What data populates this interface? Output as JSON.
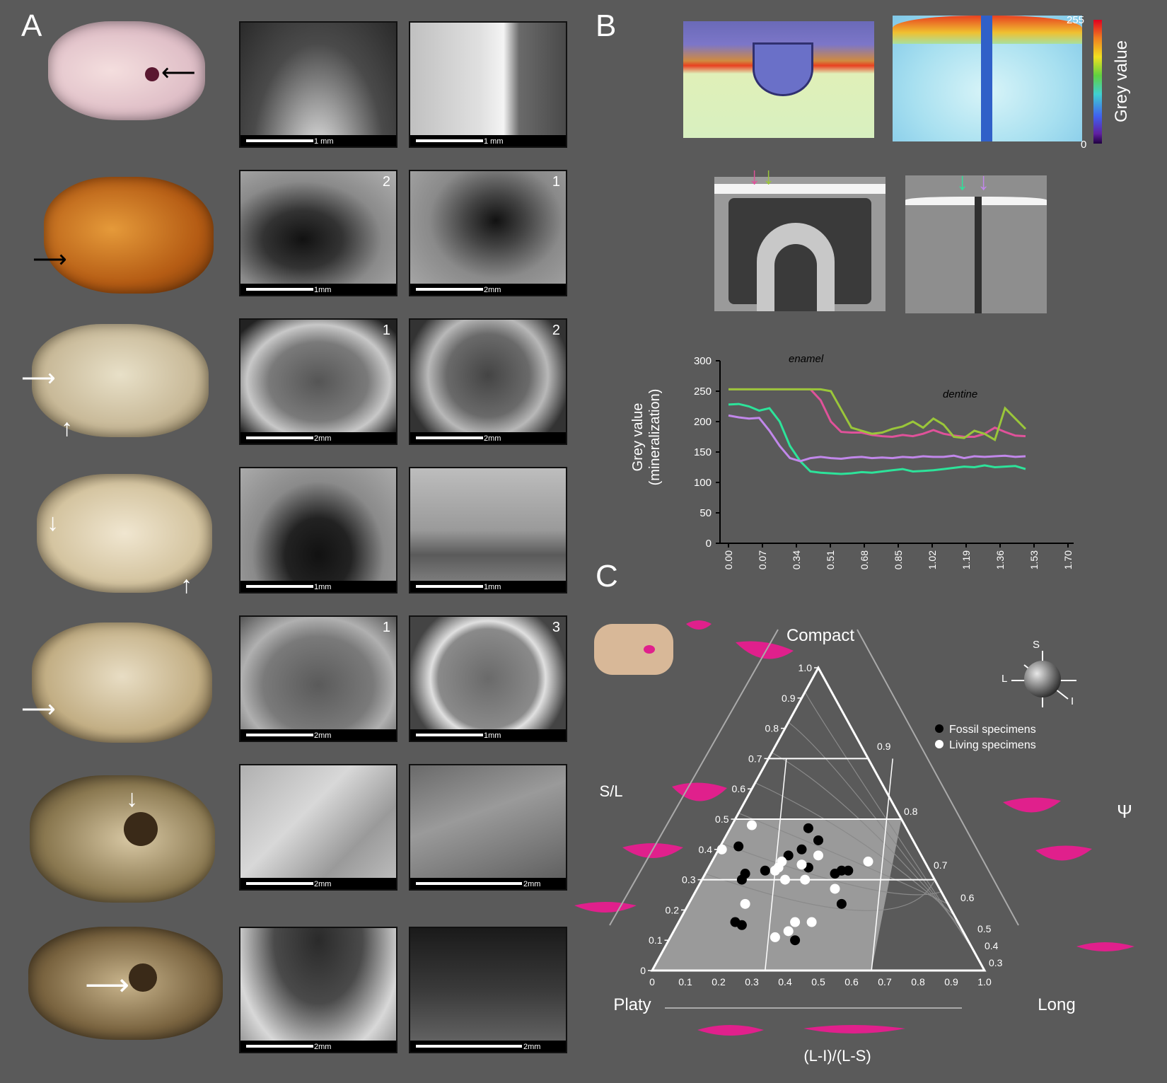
{
  "panels": {
    "a": "A",
    "b": "B",
    "c": "C"
  },
  "sem_rows": [
    {
      "left": {
        "scale": "1 mm",
        "num": ""
      },
      "right": {
        "scale": "1 mm",
        "num": ""
      }
    },
    {
      "left": {
        "scale": "1mm",
        "num": "2"
      },
      "right": {
        "scale": "2mm",
        "num": "1"
      }
    },
    {
      "left": {
        "scale": "2mm",
        "num": "1"
      },
      "right": {
        "scale": "2mm",
        "num": "2"
      }
    },
    {
      "left": {
        "scale": "1mm",
        "num": ""
      },
      "right": {
        "scale": "1mm",
        "num": ""
      }
    },
    {
      "left": {
        "scale": "2mm",
        "num": "1"
      },
      "right": {
        "scale": "1mm",
        "num": "3"
      }
    },
    {
      "left": {
        "scale": "2mm",
        "num": ""
      },
      "right": {
        "scale": "2mm",
        "num": ""
      }
    },
    {
      "left": {
        "scale": "2mm",
        "num": ""
      },
      "right": {
        "scale": "2mm",
        "num": ""
      }
    }
  ],
  "colorbar": {
    "max": "255",
    "min": "0",
    "label": "Grey value"
  },
  "chart_data": {
    "type": "line",
    "ylabel_line1": "Grey value",
    "ylabel_line2": "(mineralization)",
    "ylim": [
      0,
      300
    ],
    "yticks": [
      "0",
      "50",
      "100",
      "150",
      "200",
      "250",
      "300"
    ],
    "xticks": [
      "0.00",
      "0.07",
      "0.34",
      "0.51",
      "0.68",
      "0.85",
      "1.02",
      "1.19",
      "1.36",
      "1.53",
      "1.70"
    ],
    "annotations": {
      "enamel": "enamel",
      "dentine": "dentine"
    },
    "series": [
      {
        "color": "#e0529a",
        "values": [
          253,
          253,
          253,
          253,
          253,
          253,
          253,
          253,
          253,
          235,
          200,
          183,
          182,
          182,
          178,
          176,
          175,
          178,
          176,
          180,
          186,
          180,
          177,
          175,
          175,
          180,
          190,
          183,
          177,
          176
        ]
      },
      {
        "color": "#9ac63a",
        "values": [
          253,
          253,
          253,
          253,
          253,
          253,
          253,
          253,
          253,
          253,
          250,
          220,
          190,
          185,
          180,
          182,
          188,
          192,
          200,
          190,
          205,
          195,
          175,
          173,
          185,
          180,
          170,
          222,
          205,
          188
        ]
      },
      {
        "color": "#2de39a",
        "values": [
          228,
          229,
          225,
          218,
          222,
          200,
          160,
          135,
          118,
          116,
          115,
          114,
          115,
          117,
          116,
          118,
          120,
          122,
          118,
          119,
          120,
          122,
          124,
          126,
          125,
          128,
          125,
          126,
          127,
          122
        ]
      },
      {
        "color": "#c187ea",
        "values": [
          210,
          207,
          205,
          206,
          185,
          160,
          140,
          135,
          140,
          142,
          140,
          139,
          141,
          142,
          140,
          141,
          140,
          142,
          141,
          143,
          142,
          142,
          144,
          140,
          143,
          142,
          143,
          144,
          142,
          143
        ]
      }
    ]
  },
  "ternary": {
    "top_label": "Compact",
    "left_label": "Platy",
    "right_label": "Long",
    "side_label": "S/L",
    "psi_label": "Ψ",
    "bottom_axis_label": "(L-I)/(L-S)",
    "axis_s": "S",
    "axis_l": "L",
    "axis_i": "I",
    "legend_fossil": "Fossil specimens",
    "legend_living": "Living specimens",
    "left_ticks": [
      "0",
      "0.1",
      "0.2",
      "0.3",
      "0.4",
      "0.5",
      "0.6",
      "0.7",
      "0.8",
      "0.9",
      "1.0"
    ],
    "bottom_ticks": [
      "0",
      "0.1",
      "0.2",
      "0.3",
      "0.4",
      "0.5",
      "0.6",
      "0.7",
      "0.8",
      "0.9",
      "1.0"
    ],
    "psi_ticks": [
      "0.9",
      "0.8",
      "0.7",
      "0.6",
      "0.5",
      "0.4",
      "0.3"
    ],
    "fossil": [
      [
        0.26,
        0.41
      ],
      [
        0.28,
        0.32
      ],
      [
        0.27,
        0.3
      ],
      [
        0.25,
        0.16
      ],
      [
        0.27,
        0.15
      ],
      [
        0.41,
        0.38
      ],
      [
        0.45,
        0.4
      ],
      [
        0.47,
        0.47
      ],
      [
        0.5,
        0.43
      ],
      [
        0.47,
        0.34
      ],
      [
        0.55,
        0.32
      ],
      [
        0.57,
        0.33
      ],
      [
        0.59,
        0.33
      ],
      [
        0.57,
        0.22
      ],
      [
        0.43,
        0.1
      ],
      [
        0.34,
        0.33
      ]
    ],
    "living": [
      [
        0.3,
        0.48
      ],
      [
        0.21,
        0.4
      ],
      [
        0.39,
        0.36
      ],
      [
        0.45,
        0.35
      ],
      [
        0.37,
        0.33
      ],
      [
        0.4,
        0.3
      ],
      [
        0.38,
        0.34
      ],
      [
        0.46,
        0.3
      ],
      [
        0.55,
        0.27
      ],
      [
        0.5,
        0.38
      ],
      [
        0.65,
        0.36
      ],
      [
        0.28,
        0.22
      ],
      [
        0.37,
        0.11
      ],
      [
        0.41,
        0.13
      ],
      [
        0.43,
        0.16
      ],
      [
        0.48,
        0.16
      ]
    ]
  }
}
